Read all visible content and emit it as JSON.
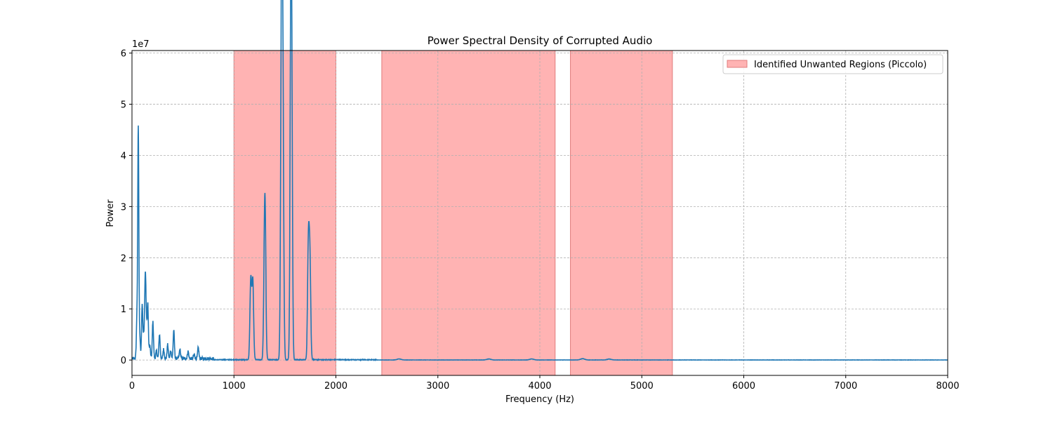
{
  "chart_data": {
    "type": "line",
    "title": "Power Spectral Density of Corrupted Audio",
    "xlabel": "Frequency (Hz)",
    "ylabel": "Power",
    "y_multiplier_label": "1e7",
    "xlim": [
      0,
      8000
    ],
    "ylim": [
      -3000000,
      60500000
    ],
    "x_ticks": [
      0,
      1000,
      2000,
      3000,
      4000,
      5000,
      6000,
      7000,
      8000
    ],
    "y_ticks": [
      0,
      10000000,
      20000000,
      30000000,
      40000000,
      50000000,
      60000000
    ],
    "y_tick_labels": [
      "0",
      "1",
      "2",
      "3",
      "4",
      "5",
      "6"
    ],
    "grid": true,
    "legend": {
      "position": "top-right",
      "entries": [
        "Identified Unwanted Regions (Piccolo)"
      ]
    },
    "line_color": "#1f77b4",
    "shade_color": "#ff9999",
    "shaded_regions": [
      {
        "start": 1000,
        "end": 2000
      },
      {
        "start": 2450,
        "end": 4150
      },
      {
        "start": 4300,
        "end": 5300
      }
    ],
    "peaks": [
      {
        "x": 50,
        "y": 9300000,
        "width": 6
      },
      {
        "x": 62,
        "y": 44000000,
        "width": 5
      },
      {
        "x": 75,
        "y": 5000000,
        "width": 6
      },
      {
        "x": 100,
        "y": 10400000,
        "width": 6
      },
      {
        "x": 115,
        "y": 4000000,
        "width": 6
      },
      {
        "x": 130,
        "y": 15300000,
        "width": 6
      },
      {
        "x": 140,
        "y": 6000000,
        "width": 6
      },
      {
        "x": 155,
        "y": 10700000,
        "width": 6
      },
      {
        "x": 175,
        "y": 2500000,
        "width": 6
      },
      {
        "x": 205,
        "y": 7200000,
        "width": 6
      },
      {
        "x": 240,
        "y": 1500000,
        "width": 6
      },
      {
        "x": 270,
        "y": 4700000,
        "width": 6
      },
      {
        "x": 310,
        "y": 1800000,
        "width": 6
      },
      {
        "x": 350,
        "y": 2700000,
        "width": 6
      },
      {
        "x": 380,
        "y": 1500000,
        "width": 6
      },
      {
        "x": 410,
        "y": 5600000,
        "width": 6
      },
      {
        "x": 470,
        "y": 1800000,
        "width": 6
      },
      {
        "x": 550,
        "y": 1400000,
        "width": 6
      },
      {
        "x": 610,
        "y": 800000,
        "width": 6
      },
      {
        "x": 650,
        "y": 2100000,
        "width": 6
      },
      {
        "x": 1165,
        "y": 15800000,
        "width": 8
      },
      {
        "x": 1185,
        "y": 15400000,
        "width": 8
      },
      {
        "x": 1295,
        "y": 7000000,
        "width": 7
      },
      {
        "x": 1305,
        "y": 29800000,
        "width": 8
      },
      {
        "x": 1465,
        "y": 51000000,
        "width": 8
      },
      {
        "x": 1475,
        "y": 52600000,
        "width": 8
      },
      {
        "x": 1485,
        "y": 18500000,
        "width": 7
      },
      {
        "x": 1555,
        "y": 31000000,
        "width": 7
      },
      {
        "x": 1563,
        "y": 57700000,
        "width": 8
      },
      {
        "x": 1570,
        "y": 13000000,
        "width": 7
      },
      {
        "x": 1730,
        "y": 22200000,
        "width": 8
      },
      {
        "x": 1745,
        "y": 19200000,
        "width": 8
      },
      {
        "x": 2620,
        "y": 200000,
        "width": 20
      },
      {
        "x": 3500,
        "y": 200000,
        "width": 20
      },
      {
        "x": 3920,
        "y": 200000,
        "width": 20
      },
      {
        "x": 4420,
        "y": 250000,
        "width": 20
      },
      {
        "x": 4680,
        "y": 180000,
        "width": 20
      }
    ]
  }
}
